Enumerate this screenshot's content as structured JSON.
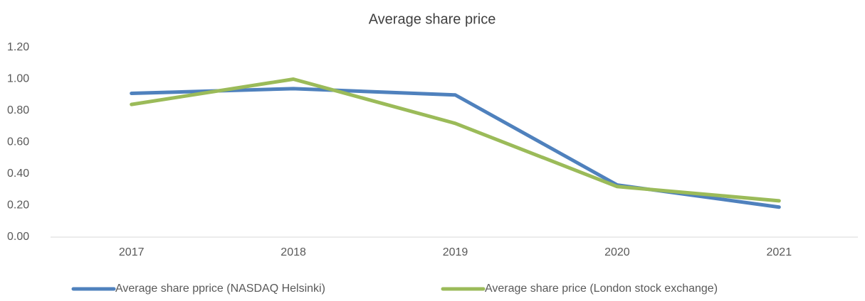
{
  "chart_data": {
    "type": "line",
    "title": "Average share price",
    "categories": [
      "2017",
      "2018",
      "2019",
      "2020",
      "2021"
    ],
    "series": [
      {
        "name": "Average share pprice (NASDAQ Helsinki)",
        "color": "#4f81bd",
        "values": [
          0.91,
          0.94,
          0.9,
          0.33,
          0.19
        ]
      },
      {
        "name": "Average share price (London stock exchange)",
        "color": "#9bbb59",
        "values": [
          0.84,
          1.0,
          0.72,
          0.32,
          0.23
        ]
      }
    ],
    "ylim": [
      0,
      1.2
    ],
    "yticks": [
      {
        "value": 0,
        "label": "0.00"
      },
      {
        "value": 0.2,
        "label": "0.20"
      },
      {
        "value": 0.4,
        "label": "0.40"
      },
      {
        "value": 0.6,
        "label": "0.60"
      },
      {
        "value": 0.8,
        "label": "0.80"
      },
      {
        "value": 1,
        "label": "1.00"
      },
      {
        "value": 1.2,
        "label": "1.20"
      }
    ],
    "grid": false,
    "legend": "bottom"
  }
}
